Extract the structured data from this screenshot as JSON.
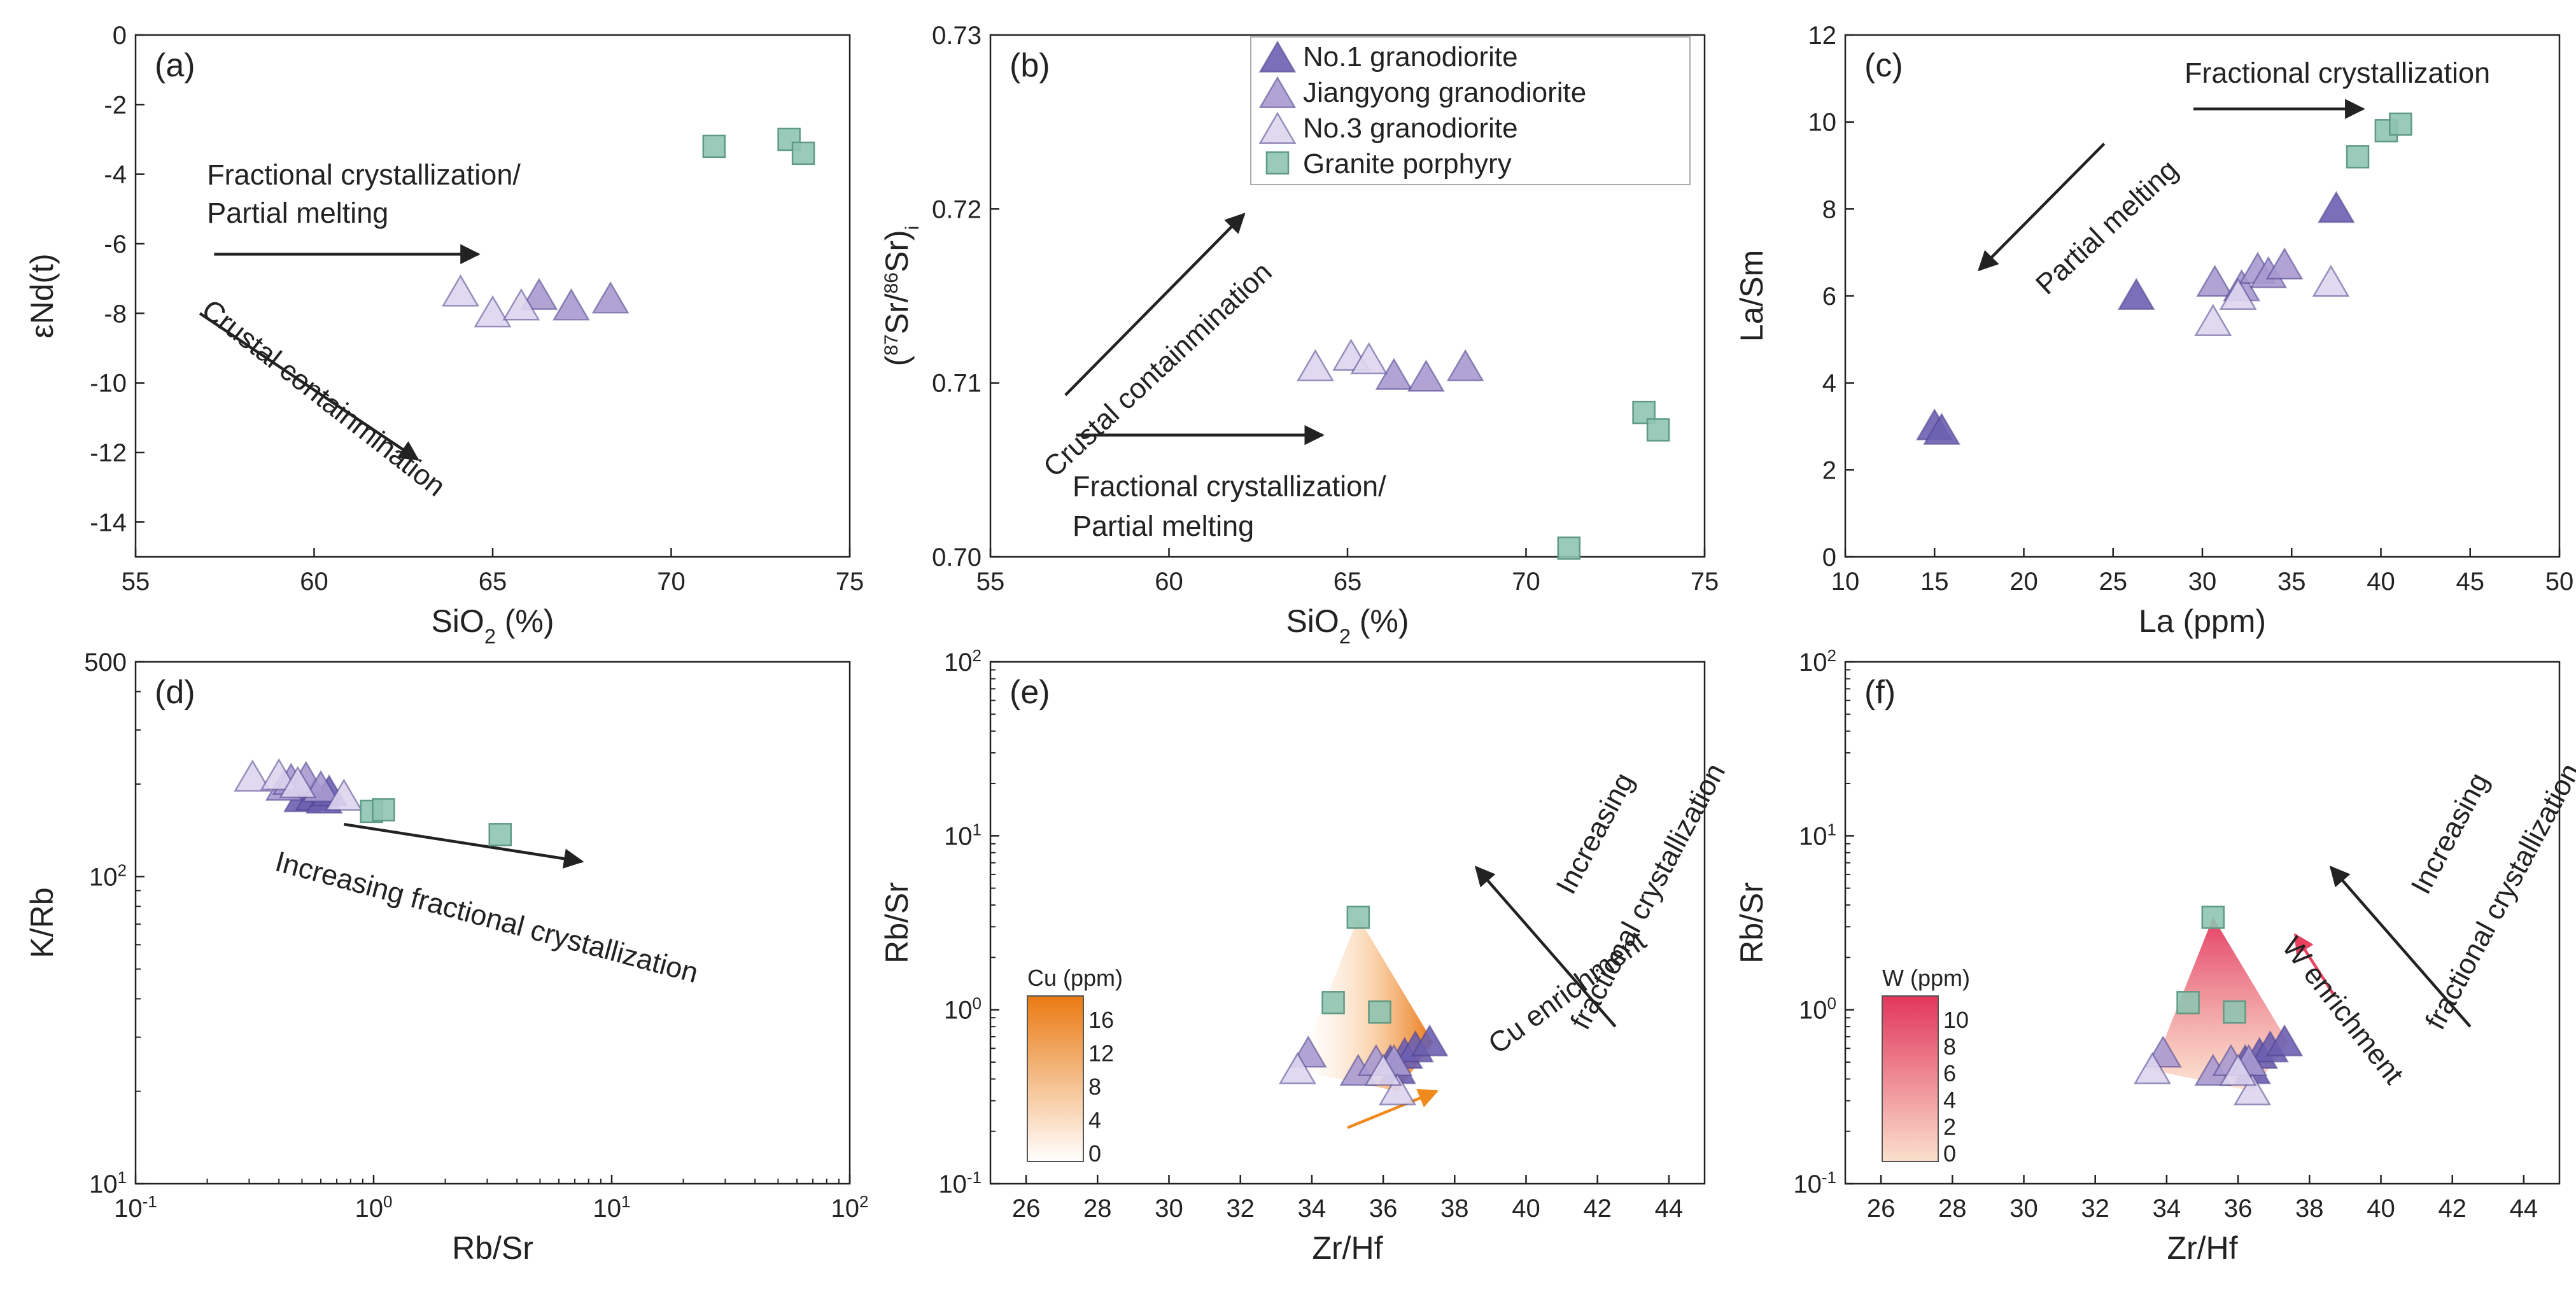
{
  "colors": {
    "no1": "#6b5fb0",
    "jiangyong": "#a99ad0",
    "no3": "#ddd5ee",
    "porphyry": "#8fc4b1",
    "cu_accent": "#f08a1c",
    "w_accent": "#e8405f",
    "arrow": "#222222"
  },
  "legend": {
    "no1": "No.1 granodiorite",
    "jiangyong": "Jiangyong granodiorite",
    "no3": "No.3 granodiorite",
    "porphyry": "Granite porphyry"
  },
  "chart_data": [
    {
      "id": "a",
      "type": "scatter",
      "panel_label": "(a)",
      "xlabel": "SiO2 (%)",
      "ylabel": "εNd(t)",
      "xlim": [
        55,
        75
      ],
      "ylim": [
        -15,
        0
      ],
      "xticks": [
        55,
        60,
        65,
        70,
        75
      ],
      "yticks": [
        0,
        -2,
        -4,
        -6,
        -8,
        -10,
        -12,
        -14
      ],
      "series": [
        {
          "name": "No.1 granodiorite",
          "key": "no1",
          "points": []
        },
        {
          "name": "Jiangyong granodiorite",
          "key": "jiangyong",
          "points": [
            [
              66.3,
              -7.5
            ],
            [
              67.2,
              -7.8
            ],
            [
              68.3,
              -7.6
            ]
          ]
        },
        {
          "name": "No.3 granodiorite",
          "key": "no3",
          "points": [
            [
              64.1,
              -7.4
            ],
            [
              65.0,
              -8.0
            ],
            [
              65.8,
              -7.8
            ]
          ]
        },
        {
          "name": "Granite porphyry",
          "key": "porphyry",
          "points": [
            [
              71.2,
              -3.2
            ],
            [
              73.3,
              -3.0
            ],
            [
              73.7,
              -3.4
            ]
          ]
        }
      ],
      "annotations": [
        {
          "text": "Fractional crystallization/",
          "x": 57.0,
          "y": -4.3,
          "rot": 0
        },
        {
          "text": "Partial melting",
          "x": 57.0,
          "y": -5.4,
          "rot": 0
        },
        {
          "text": "Crustal containmination",
          "x": 56.8,
          "y": -8.0,
          "rot": 38
        }
      ],
      "arrows": [
        {
          "from": [
            57.2,
            -6.3
          ],
          "to": [
            64.6,
            -6.3
          ]
        },
        {
          "from": [
            56.8,
            -8.0
          ],
          "to": [
            62.9,
            -12.2
          ]
        }
      ]
    },
    {
      "id": "b",
      "type": "scatter",
      "panel_label": "(b)",
      "xlabel": "SiO2 (%)",
      "ylabel": "(87Sr/86Sr)i",
      "xlim": [
        55,
        75
      ],
      "ylim": [
        0.7,
        0.73
      ],
      "xticks": [
        55,
        60,
        65,
        70,
        75
      ],
      "yticks": [
        0.7,
        0.71,
        0.72,
        0.73
      ],
      "series": [
        {
          "name": "No.1 granodiorite",
          "key": "no1",
          "points": []
        },
        {
          "name": "Jiangyong granodiorite",
          "key": "jiangyong",
          "points": [
            [
              66.3,
              0.7104
            ],
            [
              67.2,
              0.7103
            ],
            [
              68.3,
              0.7109
            ]
          ]
        },
        {
          "name": "No.3 granodiorite",
          "key": "no3",
          "points": [
            [
              64.1,
              0.7109
            ],
            [
              65.1,
              0.7115
            ],
            [
              65.6,
              0.7113
            ]
          ]
        },
        {
          "name": "Granite porphyry",
          "key": "porphyry",
          "points": [
            [
              71.2,
              0.7005
            ],
            [
              73.3,
              0.7083
            ],
            [
              73.7,
              0.7073
            ]
          ]
        }
      ],
      "annotations": [
        {
          "text": "Crustal containmination",
          "x": 56.8,
          "y": 0.7045,
          "rot": -43
        },
        {
          "text": "Fractional crystallization/",
          "x": 57.3,
          "y": 0.7035,
          "rot": 0
        },
        {
          "text": "Partial melting",
          "x": 57.3,
          "y": 0.7012,
          "rot": 0
        }
      ],
      "arrows": [
        {
          "from": [
            57.1,
            0.7093
          ],
          "to": [
            62.1,
            0.7197
          ]
        },
        {
          "from": [
            57.4,
            0.707
          ],
          "to": [
            64.3,
            0.707
          ]
        }
      ]
    },
    {
      "id": "c",
      "type": "scatter",
      "panel_label": "(c)",
      "xlabel": "La (ppm)",
      "ylabel": "La/Sm",
      "xlim": [
        10,
        50
      ],
      "ylim": [
        0,
        12
      ],
      "xticks": [
        10,
        15,
        20,
        25,
        30,
        35,
        40,
        45,
        50
      ],
      "yticks": [
        0,
        2,
        4,
        6,
        8,
        10,
        12
      ],
      "series": [
        {
          "name": "No.1 granodiorite",
          "key": "no1",
          "points": [
            [
              15.0,
              3.0
            ],
            [
              15.4,
              2.9
            ],
            [
              26.3,
              6.0
            ],
            [
              37.5,
              8.0
            ]
          ]
        },
        {
          "name": "Jiangyong granodiorite",
          "key": "jiangyong",
          "points": [
            [
              30.7,
              6.3
            ],
            [
              32.2,
              6.2
            ],
            [
              33.1,
              6.6
            ],
            [
              33.7,
              6.5
            ],
            [
              34.6,
              6.7
            ]
          ]
        },
        {
          "name": "No.3 granodiorite",
          "key": "no3",
          "points": [
            [
              30.6,
              5.4
            ],
            [
              32.0,
              6.0
            ],
            [
              37.2,
              6.3
            ]
          ]
        },
        {
          "name": "Granite porphyry",
          "key": "porphyry",
          "points": [
            [
              38.7,
              9.2
            ],
            [
              40.3,
              9.8
            ],
            [
              41.1,
              9.95
            ]
          ]
        }
      ],
      "annotations": [
        {
          "text": "Fractional crystallization",
          "x": 29.0,
          "y": 10.9,
          "rot": 0
        },
        {
          "text": "Partial melting",
          "x": 21.3,
          "y": 6.0,
          "rot": -43
        }
      ],
      "arrows": [
        {
          "from": [
            29.5,
            10.3
          ],
          "to": [
            39.0,
            10.3
          ]
        },
        {
          "from": [
            24.5,
            9.5
          ],
          "to": [
            17.5,
            6.6
          ]
        }
      ]
    },
    {
      "id": "d",
      "type": "scatter",
      "panel_label": "(d)",
      "xlog": true,
      "ylog": true,
      "xlabel": "Rb/Sr",
      "ylabel": "K/Rb",
      "xlim": [
        0.1,
        100
      ],
      "ylim": [
        10,
        500
      ],
      "xticks": [
        0.1,
        1,
        10,
        100
      ],
      "yticks": [
        10,
        100,
        500
      ],
      "ytick_labels": [
        "10^1",
        "10^2",
        "500"
      ],
      "series": [
        {
          "name": "No.1 granodiorite",
          "key": "no1",
          "points": [
            [
              0.5,
              180
            ],
            [
              0.56,
              182
            ],
            [
              0.62,
              178
            ],
            [
              0.65,
              188
            ]
          ]
        },
        {
          "name": "Jiangyong granodiorite",
          "key": "jiangyong",
          "points": [
            [
              0.42,
              196
            ],
            [
              0.45,
              205
            ],
            [
              0.52,
              208
            ],
            [
              0.6,
              194
            ]
          ]
        },
        {
          "name": "No.3 granodiorite",
          "key": "no3",
          "points": [
            [
              0.31,
              210
            ],
            [
              0.4,
              212
            ],
            [
              0.48,
              200
            ],
            [
              0.75,
              182
            ]
          ]
        },
        {
          "name": "Granite porphyry",
          "key": "porphyry",
          "points": [
            [
              0.98,
              163
            ],
            [
              1.1,
              165
            ],
            [
              3.4,
              137
            ]
          ]
        }
      ],
      "annotations": [
        {
          "text": "Increasing fractional crystallization",
          "x": 0.38,
          "y": 105,
          "rot": 15
        }
      ],
      "arrows": [
        {
          "from": [
            0.75,
            148
          ],
          "to": [
            7.5,
            112
          ]
        }
      ]
    },
    {
      "id": "e",
      "type": "scatter",
      "panel_label": "(e)",
      "ylog": true,
      "xlabel": "Zr/Hf",
      "ylabel": "Rb/Sr",
      "xlim": [
        25,
        45
      ],
      "ylim": [
        0.1,
        100
      ],
      "xticks": [
        26,
        28,
        30,
        32,
        34,
        36,
        38,
        40,
        42,
        44
      ],
      "yticks": [
        0.1,
        1,
        10,
        100
      ],
      "ytick_labels": [
        "10^-1",
        "10^0",
        "10^1",
        "10^2"
      ],
      "series": [
        {
          "name": "No.1 granodiorite",
          "key": "no1",
          "points": [
            [
              36.2,
              0.5
            ],
            [
              36.6,
              0.55
            ],
            [
              36.9,
              0.6
            ],
            [
              37.3,
              0.65
            ],
            [
              36.4,
              0.45
            ]
          ]
        },
        {
          "name": "Jiangyong granodiorite",
          "key": "jiangyong",
          "points": [
            [
              33.9,
              0.56
            ],
            [
              35.3,
              0.44
            ],
            [
              35.8,
              0.5
            ],
            [
              36.3,
              0.5
            ]
          ]
        },
        {
          "name": "No.3 granodiorite",
          "key": "no3",
          "points": [
            [
              33.6,
              0.45
            ],
            [
              36.4,
              0.34
            ],
            [
              36.0,
              0.44
            ]
          ]
        },
        {
          "name": "Granite porphyry",
          "key": "porphyry",
          "points": [
            [
              35.3,
              3.4
            ],
            [
              34.6,
              1.1
            ],
            [
              35.9,
              0.97
            ]
          ]
        }
      ],
      "surface_hull": [
        [
          35.3,
          3.4
        ],
        [
          33.6,
          0.45
        ],
        [
          36.4,
          0.34
        ],
        [
          37.4,
          0.65
        ]
      ],
      "colorbar": {
        "title": "Cu (ppm)",
        "ticks": [
          "16",
          "12",
          "8",
          "4",
          "0"
        ],
        "top": "#ea7a12",
        "bottom": "#ffffff"
      },
      "annotations": [
        {
          "text": "Increasing",
          "x": 41.3,
          "y": 4.5,
          "rot": -62
        },
        {
          "text": "fractional crystallization",
          "x": 41.7,
          "y": 0.75,
          "rot": -62
        },
        {
          "text": "Cu enrichment",
          "x": 39.2,
          "y": 0.55,
          "rot": -36
        }
      ],
      "arrows": [
        {
          "from": [
            42.5,
            0.8
          ],
          "to": [
            38.6,
            6.6
          ]
        },
        {
          "from": [
            35.0,
            0.21
          ],
          "to": [
            37.5,
            0.34
          ],
          "accent": true
        }
      ]
    },
    {
      "id": "f",
      "type": "scatter",
      "panel_label": "(f)",
      "ylog": true,
      "xlabel": "Zr/Hf",
      "ylabel": "Rb/Sr",
      "xlim": [
        25,
        45
      ],
      "ylim": [
        0.1,
        100
      ],
      "xticks": [
        26,
        28,
        30,
        32,
        34,
        36,
        38,
        40,
        42,
        44
      ],
      "yticks": [
        0.1,
        1,
        10,
        100
      ],
      "ytick_labels": [
        "10^-1",
        "10^0",
        "10^1",
        "10^2"
      ],
      "series": [
        {
          "name": "No.1 granodiorite",
          "key": "no1",
          "points": [
            [
              36.2,
              0.5
            ],
            [
              36.6,
              0.55
            ],
            [
              36.9,
              0.6
            ],
            [
              37.3,
              0.65
            ],
            [
              36.4,
              0.45
            ]
          ]
        },
        {
          "name": "Jiangyong granodiorite",
          "key": "jiangyong",
          "points": [
            [
              33.9,
              0.56
            ],
            [
              35.3,
              0.44
            ],
            [
              35.8,
              0.5
            ],
            [
              36.3,
              0.5
            ]
          ]
        },
        {
          "name": "No.3 granodiorite",
          "key": "no3",
          "points": [
            [
              33.6,
              0.45
            ],
            [
              36.4,
              0.34
            ],
            [
              36.0,
              0.44
            ]
          ]
        },
        {
          "name": "Granite porphyry",
          "key": "porphyry",
          "points": [
            [
              35.3,
              3.4
            ],
            [
              34.6,
              1.1
            ],
            [
              35.9,
              0.97
            ]
          ]
        }
      ],
      "surface_hull": [
        [
          35.3,
          3.4
        ],
        [
          33.6,
          0.45
        ],
        [
          36.4,
          0.34
        ],
        [
          37.4,
          0.65
        ]
      ],
      "colorbar": {
        "title": "W (ppm)",
        "ticks": [
          "10",
          "8",
          "6",
          "4",
          "2",
          "0"
        ],
        "top": "#e2365c",
        "bottom": "#fbe0cc"
      },
      "annotations": [
        {
          "text": "Increasing",
          "x": 41.3,
          "y": 4.5,
          "rot": -62
        },
        {
          "text": "fractional crystallization",
          "x": 41.7,
          "y": 0.75,
          "rot": -62
        },
        {
          "text": "W enrichment",
          "x": 37.2,
          "y": 2.3,
          "rot": 52
        }
      ],
      "arrows": [
        {
          "from": [
            42.5,
            0.8
          ],
          "to": [
            38.6,
            6.6
          ]
        },
        {
          "from": [
            38.7,
            1.2
          ],
          "to": [
            37.6,
            2.7
          ],
          "accent": true
        }
      ]
    }
  ]
}
